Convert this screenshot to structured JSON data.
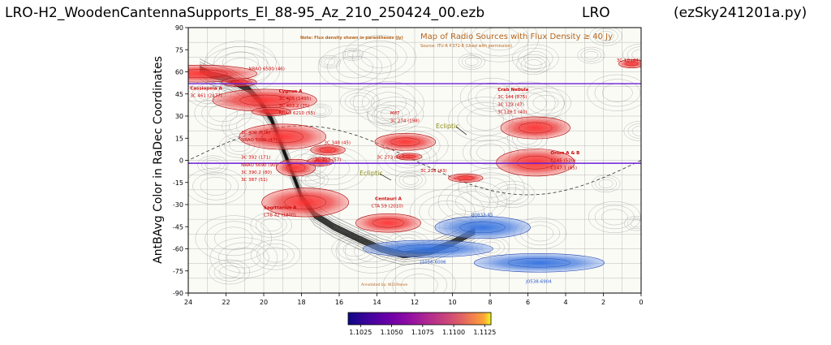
{
  "header": {
    "filename": "LRO-H2_WoodenCantennaSupports_El_88-95_Az_210_250424_00.ezb",
    "station": "LRO",
    "program": "(ezSky241201a.py)"
  },
  "chart_data": {
    "type": "heatmap",
    "ylabel": "AntBAvg Color in RaDec Coordinates",
    "xlabel": "",
    "xlim": [
      24,
      0
    ],
    "ylim": [
      -90,
      90
    ],
    "x_ticks": [
      "24",
      "22",
      "20",
      "18",
      "16",
      "14",
      "12",
      "10",
      "8",
      "6",
      "4",
      "2",
      "0"
    ],
    "y_ticks": [
      "90",
      "75",
      "60",
      "45",
      "30",
      "15",
      "0",
      "-15",
      "-30",
      "-45",
      "-60",
      "-75",
      "-90"
    ],
    "colorbar": {
      "colormap": "plasma",
      "range": [
        1.1015,
        1.113
      ],
      "ticks": [
        "1.1025",
        "1.1050",
        "1.1075",
        "1.1100",
        "1.1125"
      ]
    },
    "background_map": {
      "title": "Map of Radio Sources with Flux Density ≥ 40 Jy",
      "source": "Source: ITU-R P.372-8 (Used with permission)",
      "note": "Note: Flux density shown in parentheses (Jy)",
      "credit": "Annotated by: W.D.Reeve",
      "ecliptic_label": "Ecliptic"
    },
    "horizontal_lines": [
      {
        "dec": 52,
        "color": "#6b1fd6"
      },
      {
        "dec": -2,
        "color": "#6b1fd6"
      }
    ],
    "galactic_plane": [
      [
        23.4,
        62
      ],
      [
        22.8,
        58
      ],
      [
        21.8,
        55
      ],
      [
        20.8,
        48
      ],
      [
        20.2,
        40
      ],
      [
        19.6,
        28
      ],
      [
        19.2,
        15
      ],
      [
        18.9,
        5
      ],
      [
        18.5,
        -8
      ],
      [
        18.0,
        -25
      ],
      [
        17.3,
        -37
      ],
      [
        16.3,
        -45
      ],
      [
        15.0,
        -53
      ],
      [
        13.8,
        -60
      ],
      [
        12.6,
        -64
      ],
      [
        11.2,
        -62
      ],
      [
        10.0,
        -56
      ],
      [
        8.8,
        -48
      ]
    ],
    "hot_sources": [
      {
        "ra": 23.35,
        "dec": 58.8,
        "rx": 2.6,
        "ry": 5.0,
        "color": "red"
      },
      {
        "ra": 21.3,
        "dec": 53.0,
        "rx": 0.8,
        "ry": 2.5,
        "color": "red"
      },
      {
        "ra": 19.95,
        "dec": 40.7,
        "rx": 2.4,
        "ry": 6.5,
        "color": "red"
      },
      {
        "ra": 19.6,
        "dec": 33.0,
        "rx": 0.9,
        "ry": 2.5,
        "color": "red"
      },
      {
        "ra": 19.0,
        "dec": 16.0,
        "rx": 2.0,
        "ry": 7.5,
        "color": "red"
      },
      {
        "ra": 18.3,
        "dec": -5.0,
        "rx": 0.9,
        "ry": 5.0,
        "color": "red"
      },
      {
        "ra": 17.8,
        "dec": -28.5,
        "rx": 2.0,
        "ry": 8.5,
        "color": "red"
      },
      {
        "ra": 17.0,
        "dec": -1.0,
        "rx": 0.6,
        "ry": 2.5,
        "color": "red"
      },
      {
        "ra": 16.6,
        "dec": 7.0,
        "rx": 0.8,
        "ry": 3.0,
        "color": "red"
      },
      {
        "ra": 13.4,
        "dec": -42.5,
        "rx": 1.5,
        "ry": 5.5,
        "color": "red"
      },
      {
        "ra": 12.5,
        "dec": 12.5,
        "rx": 1.4,
        "ry": 5.0,
        "color": "red"
      },
      {
        "ra": 12.3,
        "dec": 2.5,
        "rx": 0.6,
        "ry": 2.0,
        "color": "red"
      },
      {
        "ra": 9.3,
        "dec": -12.0,
        "rx": 0.8,
        "ry": 2.5,
        "color": "red"
      },
      {
        "ra": 5.6,
        "dec": 22.0,
        "rx": 1.6,
        "ry": 6.5,
        "color": "red"
      },
      {
        "ra": 5.6,
        "dec": -1.5,
        "rx": 1.8,
        "ry": 8.0,
        "color": "red"
      },
      {
        "ra": 0.5,
        "dec": 65.5,
        "rx": 0.6,
        "ry": 2.5,
        "color": "red"
      },
      {
        "ra": 11.3,
        "dec": -60.0,
        "rx": 3.0,
        "ry": 5.0,
        "color": "blue"
      },
      {
        "ra": 8.4,
        "dec": -45.5,
        "rx": 2.2,
        "ry": 6.5,
        "color": "blue"
      },
      {
        "ra": 5.4,
        "dec": -69.5,
        "rx": 3.0,
        "ry": 5.5,
        "color": "blue"
      }
    ],
    "annotations": [
      {
        "text": "Cassiopeia A",
        "ra": 23.9,
        "dec": 48,
        "color": "#cc0000",
        "bold": true
      },
      {
        "text": "3C 461 (2477)",
        "ra": 23.9,
        "dec": 43,
        "color": "#cc0000"
      },
      {
        "text": "NRAO 6500 (46)",
        "ra": 20.8,
        "dec": 61,
        "color": "#cc0000"
      },
      {
        "text": "Cygnus A",
        "ra": 19.2,
        "dec": 46,
        "color": "#cc0000",
        "bold": true
      },
      {
        "text": "3C 405 (1495)",
        "ra": 19.2,
        "dec": 41,
        "color": "#cc0000"
      },
      {
        "text": "3C 403.2 (75)",
        "ra": 19.2,
        "dec": 36,
        "color": "#cc0000"
      },
      {
        "text": "NRAO 6210 (55)",
        "ra": 19.2,
        "dec": 31,
        "color": "#cc0000"
      },
      {
        "text": "3C 400 (676)",
        "ra": 21.2,
        "dec": 18,
        "color": "#cc0000"
      },
      {
        "text": "NRAO 5980 (47)",
        "ra": 21.2,
        "dec": 13,
        "color": "#cc0000"
      },
      {
        "text": "3C 348 (45)",
        "ra": 16.8,
        "dec": 11,
        "color": "#cc0000"
      },
      {
        "text": "3C 392 (171)",
        "ra": 21.2,
        "dec": 1,
        "color": "#cc0000"
      },
      {
        "text": "NRAO 5690 (90)",
        "ra": 21.2,
        "dec": -4,
        "color": "#cc0000"
      },
      {
        "text": "3C 390.2 (80)",
        "ra": 21.2,
        "dec": -9,
        "color": "#cc0000"
      },
      {
        "text": "3C 387 (51)",
        "ra": 21.2,
        "dec": -14,
        "color": "#cc0000"
      },
      {
        "text": "3C 353 (57)",
        "ra": 17.3,
        "dec": -0.5,
        "color": "#cc0000"
      },
      {
        "text": "Sagittarius A",
        "ra": 20.0,
        "dec": -33,
        "color": "#cc0000",
        "bold": true
      },
      {
        "text": "CTB 42 (1800)",
        "ra": 20.0,
        "dec": -38,
        "color": "#cc0000"
      },
      {
        "text": "M87",
        "ra": 13.3,
        "dec": 31,
        "color": "#cc0000"
      },
      {
        "text": "3C 274 (198)",
        "ra": 13.3,
        "dec": 26,
        "color": "#cc0000"
      },
      {
        "text": "3C 273 (46)",
        "ra": 14.0,
        "dec": 1,
        "color": "#cc0000"
      },
      {
        "text": "Centauri A",
        "ra": 14.1,
        "dec": -27,
        "color": "#cc0000",
        "bold": true
      },
      {
        "text": "CTA 59 (2010)",
        "ra": 14.3,
        "dec": -32,
        "color": "#cc0000"
      },
      {
        "text": "3C 218 (43)",
        "ra": 11.7,
        "dec": -8,
        "color": "#cc0000"
      },
      {
        "text": "Crab Nebula",
        "ra": 7.6,
        "dec": 47,
        "color": "#cc0000",
        "bold": true
      },
      {
        "text": "3C 144 (875)",
        "ra": 7.6,
        "dec": 42,
        "color": "#cc0000"
      },
      {
        "text": "3C 123 (47)",
        "ra": 7.6,
        "dec": 37,
        "color": "#cc0000"
      },
      {
        "text": "3C139.1 (40)",
        "ra": 7.6,
        "dec": 32,
        "color": "#cc0000"
      },
      {
        "text": "Orion A & B",
        "ra": 4.8,
        "dec": 4,
        "color": "#cc0000",
        "bold": true
      },
      {
        "text": "C145 (520)",
        "ra": 4.8,
        "dec": -1,
        "color": "#cc0000"
      },
      {
        "text": "C147.1 (65)",
        "ra": 4.8,
        "dec": -6,
        "color": "#cc0000"
      },
      {
        "text": "3C 10 (44)",
        "ra": 1.3,
        "dec": 67,
        "color": "#cc0000"
      },
      {
        "text": "B0833-45",
        "ra": 9.0,
        "dec": -38,
        "color": "#2255cc"
      },
      {
        "text": "J1056-6006",
        "ra": 11.7,
        "dec": -70,
        "color": "#2255cc"
      },
      {
        "text": "J0538-6904",
        "ra": 6.1,
        "dec": -83,
        "color": "#2255cc"
      }
    ]
  }
}
